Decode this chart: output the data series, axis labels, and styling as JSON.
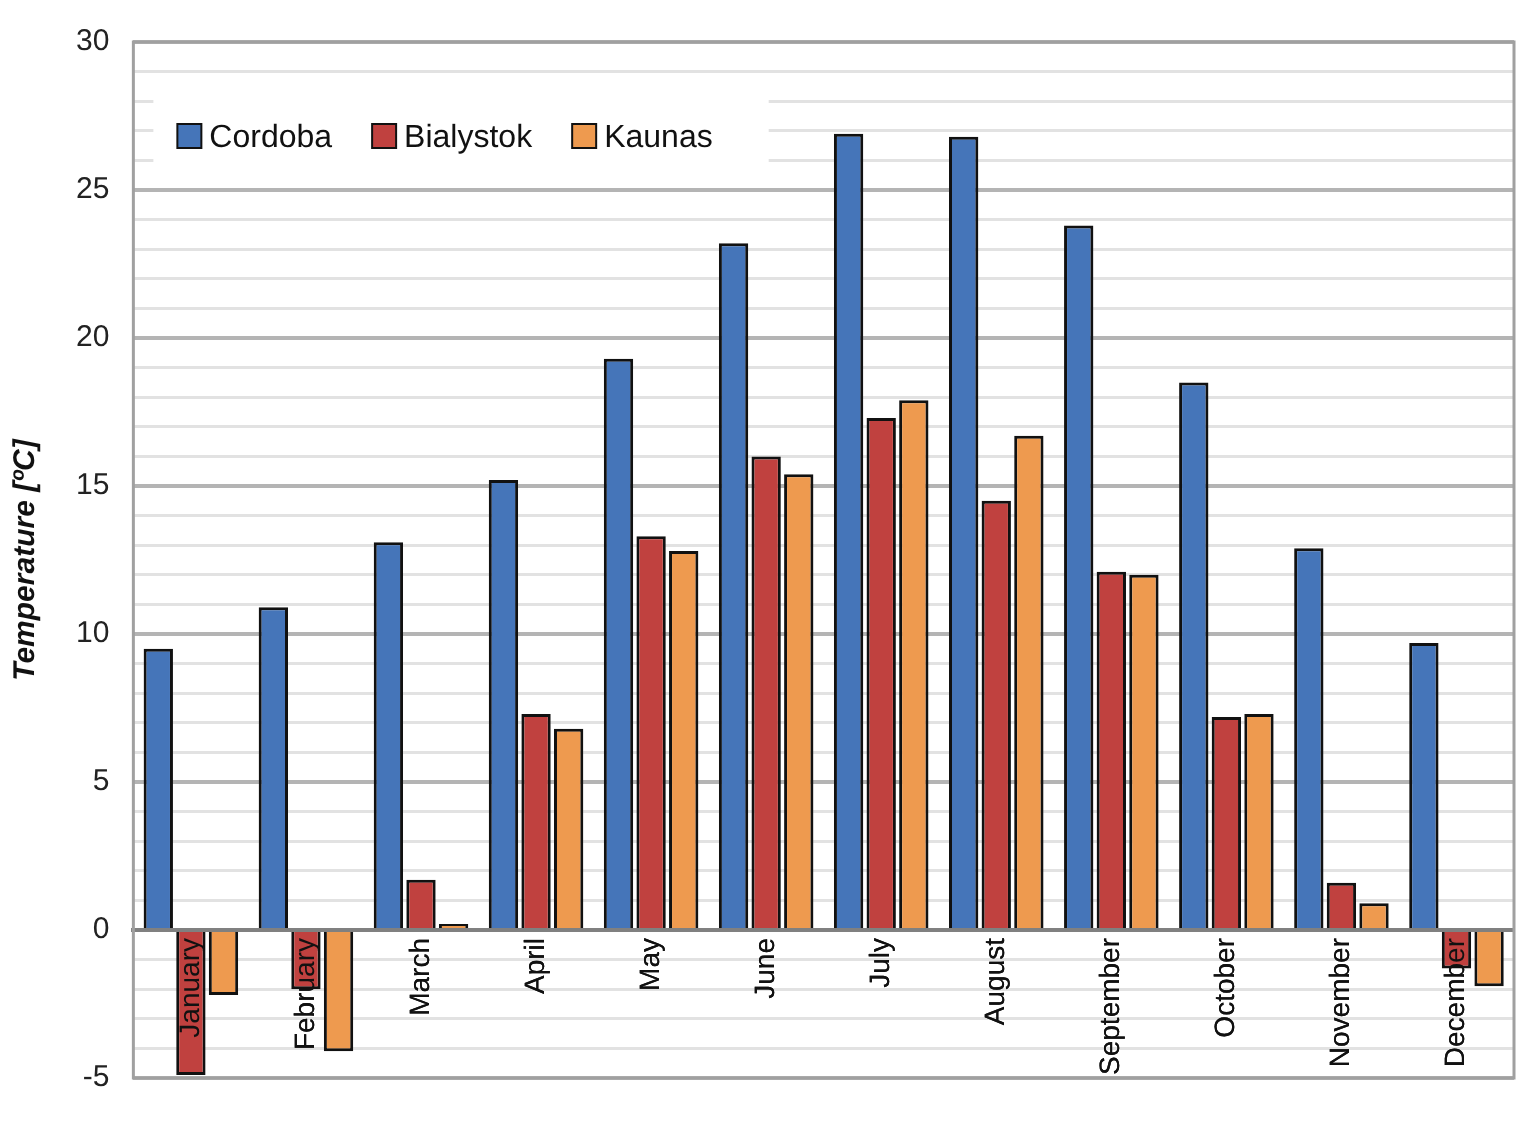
{
  "chart_data": {
    "type": "bar",
    "ylabel": "Temperature [ºC]",
    "categories": [
      "January",
      "February",
      "March",
      "April",
      "May",
      "June",
      "July",
      "August",
      "September",
      "October",
      "November",
      "December"
    ],
    "series": [
      {
        "name": "Cordoba",
        "color": "#4575b9",
        "values": [
          9.5,
          10.9,
          13.1,
          15.2,
          19.3,
          23.2,
          26.9,
          26.8,
          23.8,
          18.5,
          12.9,
          9.7
        ]
      },
      {
        "name": "Bialystok",
        "color": "#c0413f",
        "values": [
          -4.9,
          -2.0,
          1.7,
          7.3,
          13.3,
          16.0,
          17.3,
          14.5,
          12.1,
          7.2,
          1.6,
          -1.3
        ]
      },
      {
        "name": "Kaunas",
        "color": "#ee9a4f",
        "values": [
          -2.2,
          -4.1,
          0.2,
          6.8,
          12.8,
          15.4,
          17.9,
          16.7,
          12.0,
          7.3,
          0.9,
          -1.9
        ]
      }
    ],
    "ylim": [
      -5,
      30
    ],
    "yticks": [
      -5,
      {
        "value": -4,
        "label": null
      },
      {
        "value": -3,
        "label": null
      },
      {
        "value": -2,
        "label": null
      },
      {
        "value": -1,
        "label": null
      },
      0,
      {
        "value": 1,
        "label": null
      },
      {
        "value": 2,
        "label": null
      },
      {
        "value": 3,
        "label": null
      },
      {
        "value": 4,
        "label": null
      },
      5,
      {
        "value": 6,
        "label": null
      },
      {
        "value": 7,
        "label": null
      },
      {
        "value": 8,
        "label": null
      },
      {
        "value": 9,
        "label": null
      },
      10,
      {
        "value": 11,
        "label": null
      },
      {
        "value": 12,
        "label": null
      },
      {
        "value": 13,
        "label": null
      },
      {
        "value": 14,
        "label": null
      },
      15,
      {
        "value": 16,
        "label": null
      },
      {
        "value": 17,
        "label": null
      },
      {
        "value": 18,
        "label": null
      },
      {
        "value": 19,
        "label": null
      },
      20,
      {
        "value": 21,
        "label": null
      },
      {
        "value": 22,
        "label": null
      },
      {
        "value": 23,
        "label": null
      },
      {
        "value": 24,
        "label": null
      },
      25,
      {
        "value": 26,
        "label": null
      },
      {
        "value": 27,
        "label": null
      },
      {
        "value": 28,
        "label": null
      },
      {
        "value": 29,
        "label": null
      },
      30
    ],
    "grid": "y",
    "legend": "top left"
  }
}
